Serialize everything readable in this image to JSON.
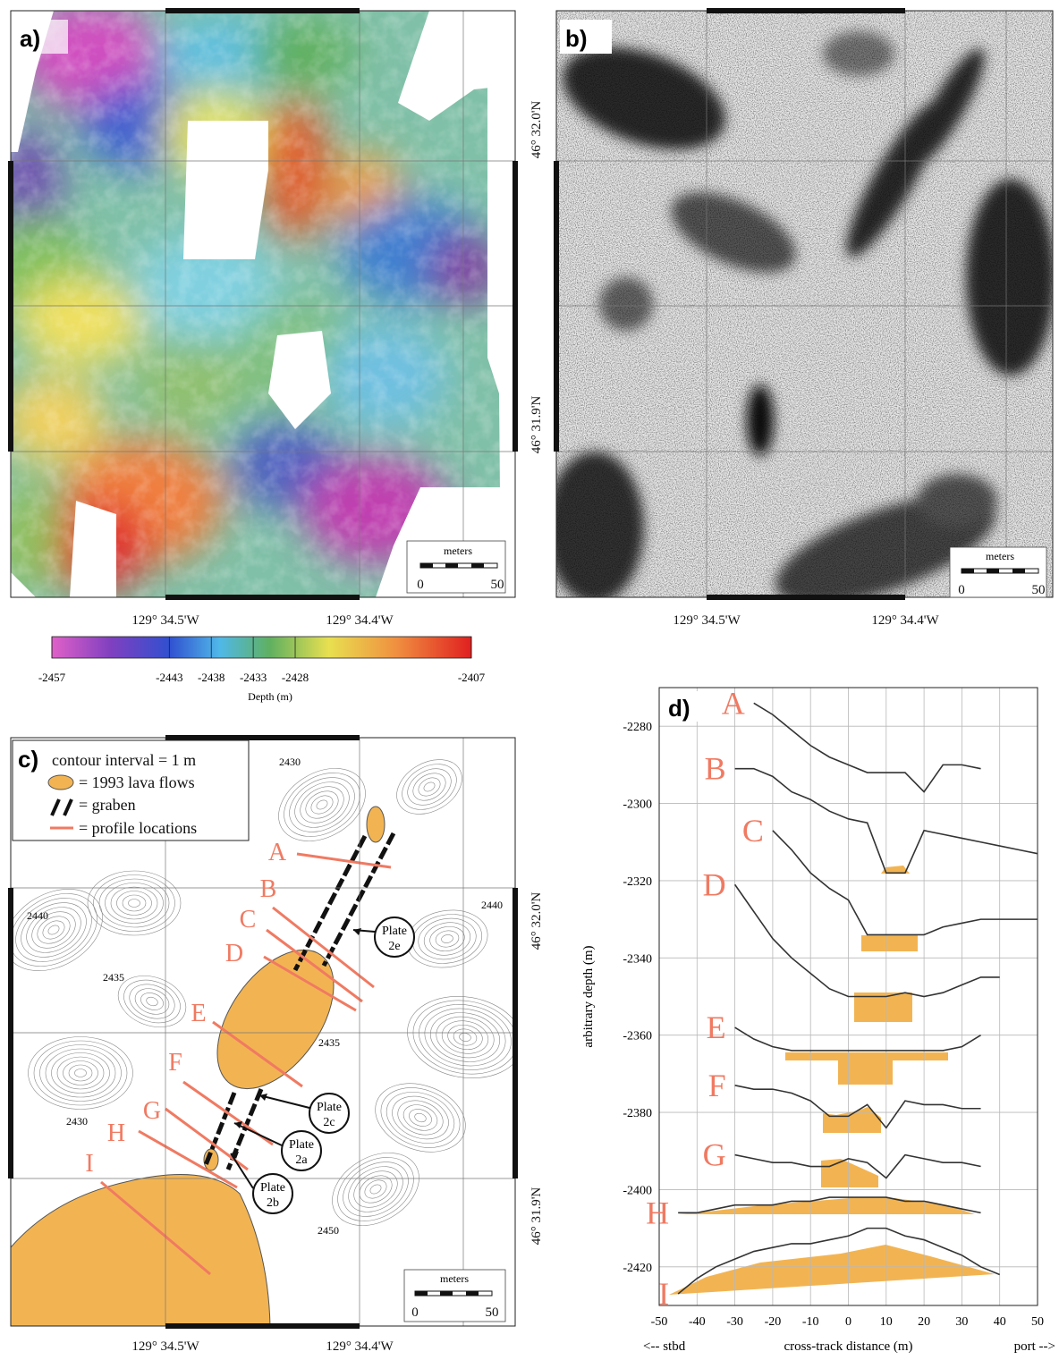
{
  "panel_a": {
    "label": "a)",
    "lat_labels": [
      "46° 32.0'N",
      "46° 31.9'N"
    ],
    "lon_labels": [
      "129° 34.5'W",
      "129° 34.4'W"
    ],
    "scale": {
      "title": "meters",
      "ticks": [
        "0",
        "50"
      ]
    }
  },
  "panel_b": {
    "label": "b)",
    "lon_labels": [
      "129° 34.5'W",
      "129° 34.4'W"
    ],
    "scale": {
      "title": "meters",
      "ticks": [
        "0",
        "50"
      ]
    }
  },
  "colorbar": {
    "label": "Depth (m)",
    "range": [
      -2457,
      -2407
    ],
    "ticks": [
      -2457,
      -2443,
      -2438,
      -2433,
      -2428,
      -2407
    ]
  },
  "panel_c": {
    "label": "c)",
    "legend": [
      "contour interval = 1 m",
      "= 1993 lava flows",
      "= graben",
      "= profile locations"
    ],
    "contour_labels": [
      "2430",
      "2440",
      "2435",
      "2440",
      "2435",
      "2430",
      "2450"
    ],
    "profile_labels": [
      "A",
      "B",
      "C",
      "D",
      "E",
      "F",
      "G",
      "H",
      "I"
    ],
    "plates": [
      [
        "Plate",
        "2e"
      ],
      [
        "Plate",
        "2c"
      ],
      [
        "Plate",
        "2a"
      ],
      [
        "Plate",
        "2b"
      ]
    ],
    "lat_labels": [
      "46° 32.0'N",
      "46° 31.9'N"
    ],
    "lon_labels": [
      "129° 34.5'W",
      "129° 34.4'W"
    ],
    "scale": {
      "title": "meters",
      "ticks": [
        "0",
        "50"
      ]
    }
  },
  "chart_data": {
    "type": "line",
    "panel_label": "d)",
    "xlabel": "cross-track distance (m)",
    "ylabel": "arbitrary depth (m)",
    "x_annotations": [
      "<-- stbd",
      "port -->"
    ],
    "x": [
      -50,
      -45,
      -40,
      -35,
      -30,
      -25,
      -20,
      -15,
      -10,
      -5,
      0,
      5,
      10,
      15,
      20,
      25,
      30,
      35,
      40,
      45,
      50
    ],
    "xlim": [
      -50,
      50
    ],
    "xticks": [
      -50,
      -40,
      -30,
      -20,
      -10,
      0,
      10,
      20,
      30,
      40,
      50
    ],
    "ylim": [
      -2430,
      -2270
    ],
    "yticks": [
      -2280,
      -2300,
      -2320,
      -2340,
      -2360,
      -2380,
      -2400,
      -2420
    ],
    "grid": true,
    "label_color": "#f07a62",
    "series": [
      {
        "name": "A",
        "color": "#333333",
        "values": [
          null,
          null,
          null,
          null,
          null,
          -2274,
          -2277,
          -2281,
          -2285,
          -2288,
          -2290,
          -2292,
          -2292,
          -2292,
          -2297,
          -2290,
          -2290,
          -2291,
          null,
          null,
          null
        ]
      },
      {
        "name": "B",
        "color": "#333333",
        "values": [
          null,
          null,
          null,
          null,
          -2291,
          -2291,
          -2293,
          -2297,
          -2299,
          -2302,
          -2304,
          -2305,
          -2318,
          -2318,
          -2307,
          -2308,
          -2309,
          -2310,
          -2311,
          -2312,
          -2313
        ]
      },
      {
        "name": "C",
        "color": "#333333",
        "values": [
          null,
          null,
          null,
          null,
          null,
          null,
          -2307,
          -2312,
          -2318,
          -2322,
          -2325,
          -2334,
          -2334,
          -2334,
          -2334,
          -2332,
          -2331,
          -2330,
          -2330,
          -2330,
          -2330
        ]
      },
      {
        "name": "D",
        "color": "#333333",
        "values": [
          null,
          null,
          null,
          null,
          -2321,
          -2328,
          -2335,
          -2340,
          -2344,
          -2348,
          -2350,
          -2350,
          -2350,
          -2349,
          -2350,
          -2349,
          -2347,
          -2345,
          -2345,
          null,
          null
        ]
      },
      {
        "name": "E",
        "color": "#333333",
        "values": [
          null,
          null,
          null,
          null,
          -2358,
          -2361,
          -2363,
          -2364,
          -2364,
          -2364,
          -2364,
          -2364,
          -2364,
          -2364,
          -2364,
          -2364,
          -2363,
          -2360,
          null,
          null,
          null
        ]
      },
      {
        "name": "F",
        "color": "#333333",
        "values": [
          null,
          null,
          null,
          null,
          -2373,
          -2374,
          -2374,
          -2375,
          -2377,
          -2381,
          -2381,
          -2378,
          -2384,
          -2377,
          -2378,
          -2378,
          -2379,
          -2379,
          null,
          null,
          null
        ]
      },
      {
        "name": "G",
        "color": "#333333",
        "values": [
          null,
          null,
          null,
          null,
          -2391,
          -2392,
          -2393,
          -2393,
          -2394,
          -2394,
          -2392,
          -2393,
          -2397,
          -2391,
          -2392,
          -2393,
          -2393,
          -2394,
          null,
          null,
          null
        ]
      },
      {
        "name": "H",
        "color": "#333333",
        "values": [
          null,
          -2406,
          -2406,
          -2405,
          -2404,
          -2404,
          -2404,
          -2403,
          -2403,
          -2402,
          -2402,
          -2402,
          -2402,
          -2403,
          -2403,
          -2404,
          -2405,
          -2406,
          null,
          null,
          null
        ]
      },
      {
        "name": "I",
        "color": "#333333",
        "values": [
          null,
          -2427,
          -2423,
          -2420,
          -2418,
          -2416,
          -2415,
          -2414,
          -2414,
          -2413,
          -2412,
          -2410,
          -2410,
          -2412,
          -2413,
          -2415,
          -2417,
          -2420,
          -2422,
          null,
          null
        ]
      }
    ]
  }
}
